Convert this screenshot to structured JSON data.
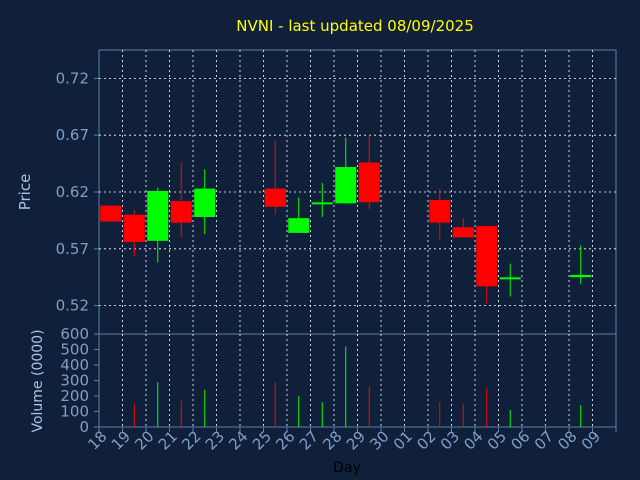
{
  "colors": {
    "background": "#11203a",
    "axis": "#5a7fa8",
    "grid": "#ffffff",
    "title": "#ffff00",
    "tick_label": "#7f9fc8",
    "axis_label": "#a9c4e6",
    "up": "#00ff00",
    "down": "#ff0000"
  },
  "chart_data": [
    {
      "type": "candlestick",
      "title": "NVNI - last updated 08/09/2025",
      "ylabel": "Price",
      "ylim": [
        0.495,
        0.745
      ],
      "yticks": [
        0.52,
        0.57,
        0.62,
        0.67,
        0.72
      ],
      "ytick_labels": [
        "0.52",
        "0.57",
        "0.62",
        "0.67",
        "0.72"
      ],
      "grid": true,
      "candles": [
        {
          "day": "18",
          "open": 0.608,
          "close": 0.594,
          "high": 0.608,
          "low": 0.594
        },
        {
          "day": "19",
          "open": 0.6,
          "close": 0.576,
          "high": 0.604,
          "low": 0.563
        },
        {
          "day": "20",
          "open": 0.577,
          "close": 0.621,
          "high": 0.624,
          "low": 0.558
        },
        {
          "day": "21",
          "open": 0.612,
          "close": 0.593,
          "high": 0.646,
          "low": 0.58
        },
        {
          "day": "22",
          "open": 0.598,
          "close": 0.623,
          "high": 0.64,
          "low": 0.583
        },
        {
          "day": "25",
          "open": 0.623,
          "close": 0.607,
          "high": 0.665,
          "low": 0.6
        },
        {
          "day": "26",
          "open": 0.584,
          "close": 0.597,
          "high": 0.615,
          "low": 0.584
        },
        {
          "day": "27",
          "open": 0.609,
          "close": 0.61,
          "high": 0.628,
          "low": 0.598
        },
        {
          "day": "28",
          "open": 0.61,
          "close": 0.642,
          "high": 0.668,
          "low": 0.61
        },
        {
          "day": "29",
          "open": 0.646,
          "close": 0.611,
          "high": 0.67,
          "low": 0.605
        },
        {
          "day": "02",
          "open": 0.613,
          "close": 0.593,
          "high": 0.623,
          "low": 0.578
        },
        {
          "day": "03",
          "open": 0.589,
          "close": 0.58,
          "high": 0.597,
          "low": 0.58
        },
        {
          "day": "04",
          "open": 0.59,
          "close": 0.537,
          "high": 0.59,
          "low": 0.522
        },
        {
          "day": "05",
          "open": 0.543,
          "close": 0.544,
          "high": 0.557,
          "low": 0.528
        },
        {
          "day": "08",
          "open": 0.545,
          "close": 0.547,
          "high": 0.573,
          "low": 0.539
        }
      ]
    },
    {
      "type": "bar",
      "ylabel": "Volume (0000)",
      "xlabel": "Day",
      "ylim": [
        0,
        600
      ],
      "yticks": [
        0,
        100,
        200,
        300,
        400,
        500,
        600
      ],
      "ytick_labels": [
        "0",
        "100",
        "200",
        "300",
        "400",
        "500",
        "600"
      ],
      "categories": [
        "18",
        "19",
        "20",
        "21",
        "22",
        "23",
        "24",
        "25",
        "26",
        "27",
        "28",
        "29",
        "30",
        "01",
        "02",
        "03",
        "04",
        "05",
        "06",
        "07",
        "08",
        "09"
      ],
      "series": [
        {
          "values": [
            0,
            150,
            290,
            170,
            240,
            0,
            0,
            290,
            200,
            160,
            520,
            260,
            0,
            0,
            160,
            150,
            250,
            110,
            0,
            0,
            140,
            0
          ],
          "direction": [
            "",
            "down",
            "up",
            "down",
            "up",
            "",
            "",
            "down",
            "up",
            "up",
            "up",
            "down",
            "",
            "",
            "down",
            "down",
            "down",
            "up",
            "",
            "",
            "up",
            ""
          ]
        }
      ]
    }
  ]
}
